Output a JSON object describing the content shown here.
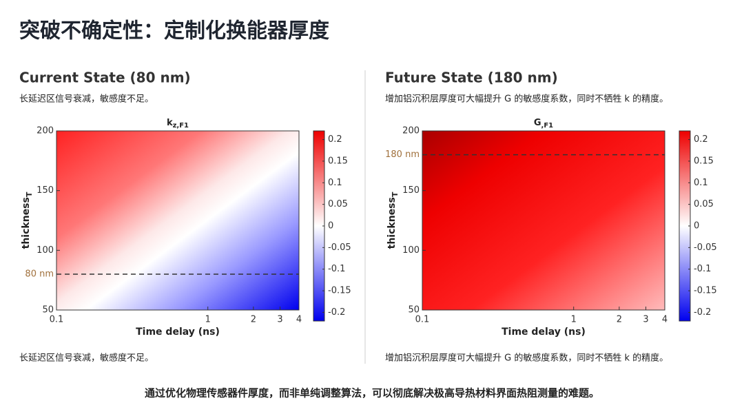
{
  "header": {
    "title": "突破不确定性：定制化换能器厚度"
  },
  "panels": [
    {
      "heading": "Current State (80 nm)",
      "description": "长延迟区信号衰减，敏感度不足。",
      "caption": "长延迟区信号衰减，敏感度不足。",
      "chart": {
        "type": "heatmap",
        "title": "k",
        "title_sub": "z,F1",
        "xlabel": "Time delay (ns)",
        "ylabel": "thickness",
        "ylabel_sub": "T",
        "xscale": "log",
        "xlim": [
          0.1,
          4
        ],
        "xticks": [
          0.1,
          1,
          2,
          3,
          4
        ],
        "ylim": [
          50,
          200
        ],
        "yticks": [
          50,
          100,
          150,
          200
        ],
        "colorbar": {
          "lim": [
            -0.22,
            0.22
          ],
          "ticks": [
            -0.2,
            -0.15,
            -0.1,
            -0.05,
            0,
            0.05,
            0.1,
            0.15,
            0.2
          ]
        },
        "marker": {
          "value": 80,
          "label": "80 nm"
        }
      }
    },
    {
      "heading": "Future State (180 nm)",
      "description": "增加铝沉积层厚度可大幅提升 G 的敏感度系数，同时不牺牲 k 的精度。",
      "caption": "增加铝沉积层厚度可大幅提升 G 的敏感度系数，同时不牺牲 k 的精度。",
      "chart": {
        "type": "heatmap",
        "title": "G",
        "title_sub": ",F1",
        "xlabel": "Time delay (ns)",
        "ylabel": "thickness",
        "ylabel_sub": "T",
        "xscale": "log",
        "xlim": [
          0.1,
          4
        ],
        "xticks": [
          0.1,
          1,
          2,
          3,
          4
        ],
        "ylim": [
          50,
          200
        ],
        "yticks": [
          50,
          100,
          150,
          200
        ],
        "colorbar": {
          "lim": [
            -0.22,
            0.22
          ],
          "ticks": [
            -0.2,
            -0.15,
            -0.1,
            -0.05,
            0,
            0.05,
            0.1,
            0.15,
            0.2
          ]
        },
        "marker": {
          "value": 180,
          "label": "180 nm"
        }
      }
    }
  ],
  "footer": "通过优化物理传感器件厚度，而非单纯调整算法，可以彻底解决极高导热材料界面热阻测量的难题。"
}
